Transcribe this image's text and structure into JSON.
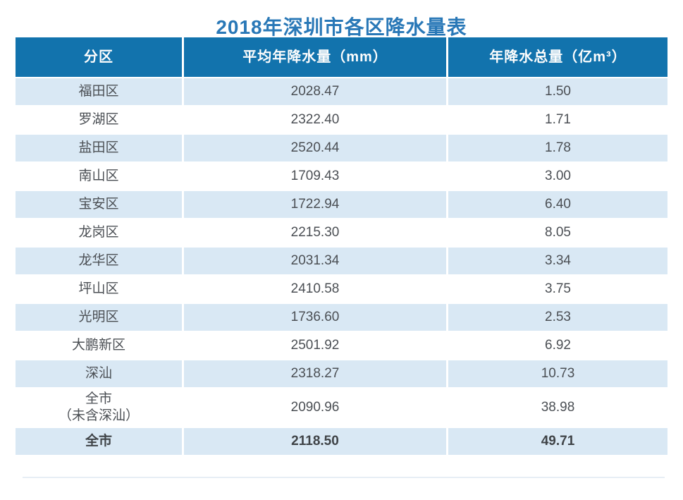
{
  "title": "2018年深圳市各区降水量表",
  "colors": {
    "header_bg": "#1273ad",
    "header_text": "#fdfdfd",
    "alt_row_bg": "#d9e8f4",
    "title_color": "#2978b7",
    "cell_text": "#4b4f54"
  },
  "table": {
    "columns": [
      {
        "label": "分区"
      },
      {
        "label": "平均年降水量（mm）"
      },
      {
        "label": "年降水总量（亿m³）"
      }
    ],
    "rows": [
      {
        "district": "福田区",
        "avg": "2028.47",
        "total": "1.50"
      },
      {
        "district": "罗湖区",
        "avg": "2322.40",
        "total": "1.71"
      },
      {
        "district": "盐田区",
        "avg": "2520.44",
        "total": "1.78"
      },
      {
        "district": "南山区",
        "avg": "1709.43",
        "total": "3.00"
      },
      {
        "district": "宝安区",
        "avg": "1722.94",
        "total": "6.40"
      },
      {
        "district": "龙岗区",
        "avg": "2215.30",
        "total": "8.05"
      },
      {
        "district": "龙华区",
        "avg": "2031.34",
        "total": "3.34"
      },
      {
        "district": "坪山区",
        "avg": "2410.58",
        "total": "3.75"
      },
      {
        "district": "光明区",
        "avg": "1736.60",
        "total": "2.53"
      },
      {
        "district": "大鹏新区",
        "avg": "2501.92",
        "total": "6.92"
      },
      {
        "district": "深汕",
        "avg": "2318.27",
        "total": "10.73"
      },
      {
        "district": "全市\n（未含深汕）",
        "avg": "2090.96",
        "total": "38.98",
        "tall": true
      },
      {
        "district": "全市",
        "avg": "2118.50",
        "total": "49.71",
        "bold": true
      }
    ]
  },
  "chart_data": {
    "type": "table",
    "title": "2018年深圳市各区降水量表",
    "columns": [
      "分区",
      "平均年降水量（mm）",
      "年降水总量（亿m³）"
    ],
    "rows": [
      [
        "福田区",
        2028.47,
        1.5
      ],
      [
        "罗湖区",
        2322.4,
        1.71
      ],
      [
        "盐田区",
        2520.44,
        1.78
      ],
      [
        "南山区",
        1709.43,
        3.0
      ],
      [
        "宝安区",
        1722.94,
        6.4
      ],
      [
        "龙岗区",
        2215.3,
        8.05
      ],
      [
        "龙华区",
        2031.34,
        3.34
      ],
      [
        "坪山区",
        2410.58,
        3.75
      ],
      [
        "光明区",
        1736.6,
        2.53
      ],
      [
        "大鹏新区",
        2501.92,
        6.92
      ],
      [
        "深汕",
        2318.27,
        10.73
      ],
      [
        "全市（未含深汕）",
        2090.96,
        38.98
      ],
      [
        "全市",
        2118.5,
        49.71
      ]
    ]
  }
}
